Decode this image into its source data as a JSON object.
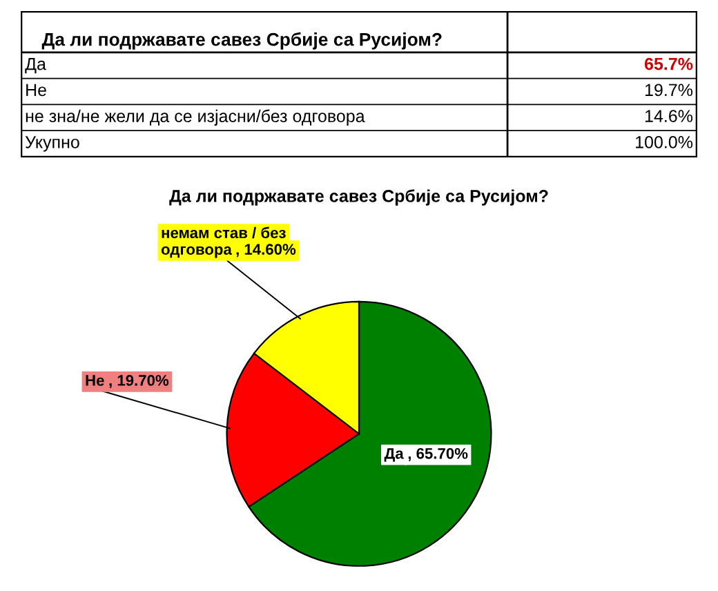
{
  "chart_data": [
    {
      "type": "other",
      "title": "Да ли подржавате савез Србије са Русијом?",
      "annotations": [
        "Да",
        "65.7%",
        "Не",
        "19.7%",
        "не зна/не жели да се изјасни/без одговора",
        "14.6%",
        "Укупно",
        "100.0%"
      ]
    },
    {
      "type": "pie",
      "title": "Да ли подржавате савез Србије са Русијом?",
      "categories": [
        "Да",
        "Не",
        "немам став / без одговора"
      ],
      "values": [
        65.7,
        19.7,
        14.6
      ],
      "colors": [
        "#008000",
        "#ff0000",
        "#ffff00"
      ],
      "value_labels": [
        ", 65.70%",
        ", 19.70%",
        ", 14.60%"
      ]
    }
  ]
}
